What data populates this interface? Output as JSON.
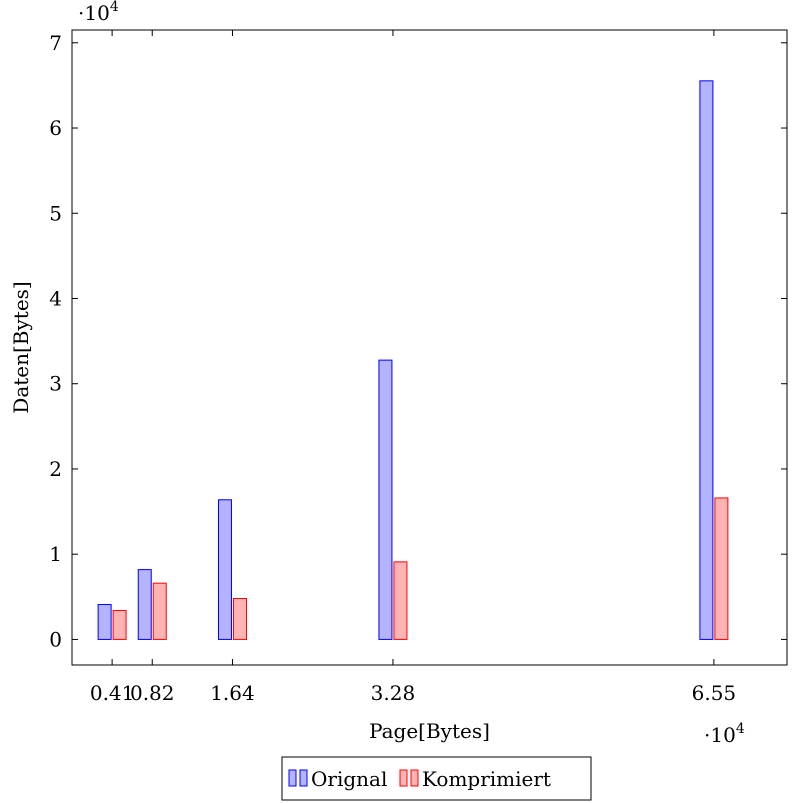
{
  "chart_data": {
    "type": "bar",
    "xlabel": "Page[Bytes]",
    "ylabel": "Daten[Bytes]",
    "x_multiplier_label": "·10",
    "x_multiplier_exp": "4",
    "y_multiplier_label": "·10",
    "y_multiplier_exp": "4",
    "x_scale": 10000,
    "y_scale": 10000,
    "xlim": [
      0,
      73000
    ],
    "ylim": [
      -3000,
      71500
    ],
    "yticks": [
      0,
      10000,
      20000,
      30000,
      40000,
      50000,
      60000,
      70000
    ],
    "ytick_labels": [
      "0",
      "1",
      "2",
      "3",
      "4",
      "5",
      "6",
      "7"
    ],
    "x": [
      4096,
      8192,
      16384,
      32768,
      65536
    ],
    "xtick_labels": [
      "0.41",
      "0.82",
      "1.64",
      "3.28",
      "6.55"
    ],
    "series": [
      {
        "name": "Orignal",
        "values": [
          4096,
          8192,
          16384,
          32768,
          65536
        ],
        "fill": "#b3b3ff",
        "stroke": "#0000ff"
      },
      {
        "name": "Komprimiert",
        "values": [
          3400,
          6600,
          4800,
          9100,
          16600
        ],
        "fill": "#ffb3b3",
        "stroke": "#ff0000"
      }
    ],
    "legend_position": "bottom"
  }
}
